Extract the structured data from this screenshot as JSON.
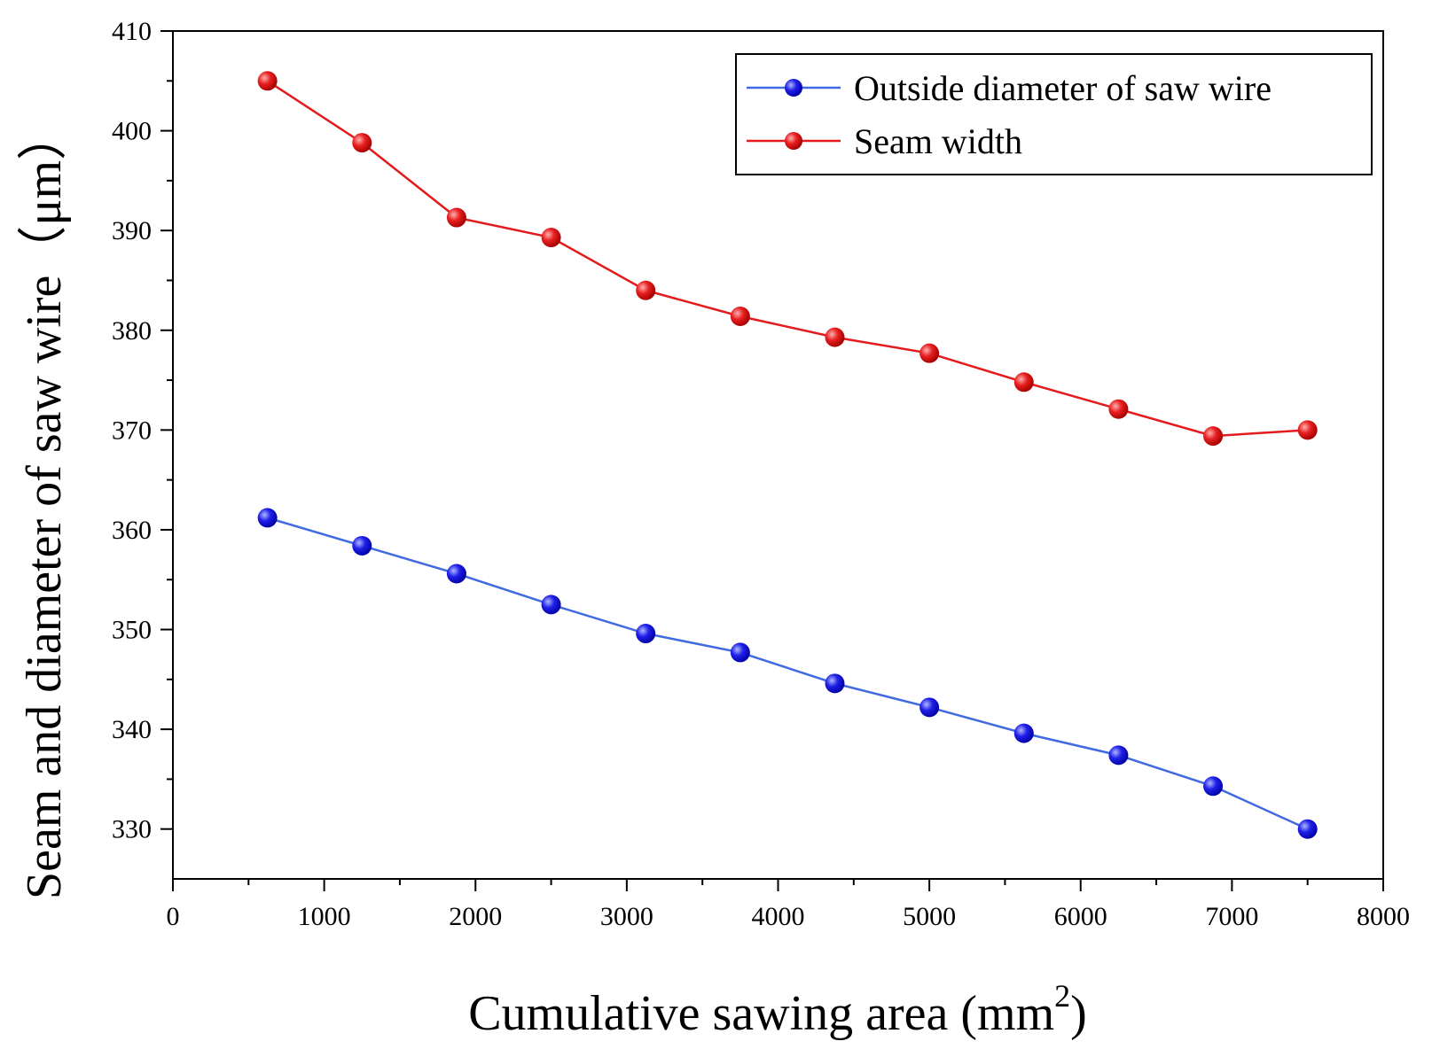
{
  "chart_data": {
    "type": "line",
    "title": "",
    "xlabel": "Cumulative sawing area (mm",
    "xlabel_sup": "2",
    "xlabel_end": ")",
    "ylabel": "Seam and diameter of saw wire（μm）",
    "xlim": [
      0,
      8000
    ],
    "ylim": [
      325,
      410
    ],
    "x_ticks": [
      0,
      1000,
      2000,
      3000,
      4000,
      5000,
      6000,
      7000,
      8000
    ],
    "y_ticks": [
      330,
      340,
      350,
      360,
      370,
      380,
      390,
      400,
      410
    ],
    "x_tick_labels": [
      "0",
      "1000",
      "2000",
      "3000",
      "4000",
      "5000",
      "6000",
      "7000",
      "8000"
    ],
    "y_tick_labels": [
      "330",
      "340",
      "350",
      "360",
      "370",
      "380",
      "390",
      "400",
      "410"
    ],
    "legend_position": "top-right",
    "x": [
      625,
      1250,
      1875,
      2500,
      3125,
      3750,
      4375,
      5000,
      5625,
      6250,
      6875,
      7500
    ],
    "series": [
      {
        "name": "Outside diameter of saw wire",
        "color": "#4169e1",
        "marker_color": "#0000ee",
        "values": [
          361.2,
          358.4,
          355.6,
          352.5,
          349.6,
          347.7,
          344.6,
          342.2,
          339.6,
          337.4,
          334.3,
          330.0
        ]
      },
      {
        "name": "Seam width",
        "color": "#e41a1c",
        "marker_color": "#ee0000",
        "values": [
          405.0,
          398.8,
          391.3,
          389.3,
          384.0,
          381.4,
          379.3,
          377.7,
          374.8,
          372.1,
          369.4,
          370.0
        ]
      }
    ]
  }
}
